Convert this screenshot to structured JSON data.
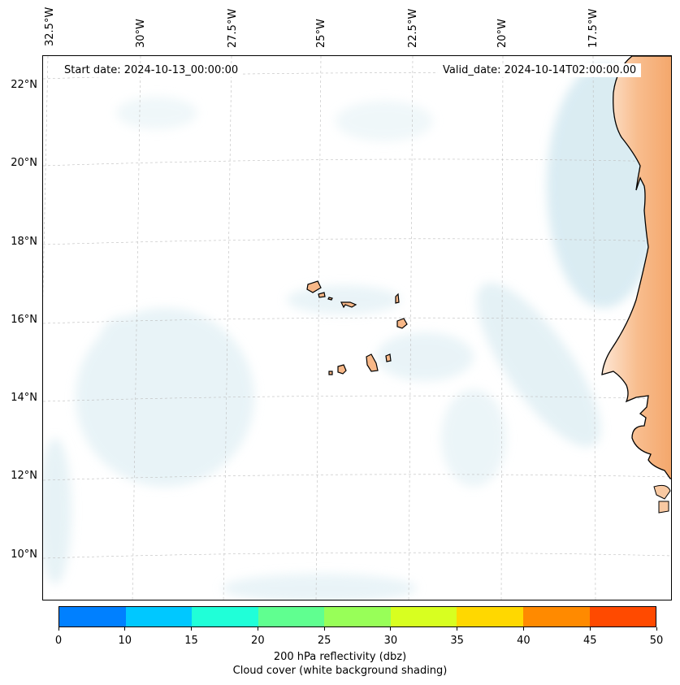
{
  "map": {
    "start_date_label": "Start date: 2024-10-13_00:00:00",
    "valid_date_label": "Valid_date: 2024-10-14T02:00:00.00",
    "longitude_labels": [
      "32.5°W",
      "30°W",
      "27.5°W",
      "25°W",
      "22.5°W",
      "20°W",
      "17.5°W"
    ],
    "latitude_labels": [
      "22°N",
      "20°N",
      "18°N",
      "16°N",
      "14°N",
      "12°N",
      "10°N"
    ],
    "cloud_color": "#cfe6ee",
    "land_color": "#f4a66a",
    "coast_color": "#000000"
  },
  "colorbar": {
    "label_line1": "200 hPa reflectivity (dbz)",
    "label_line2": "Cloud cover (white background shading)",
    "ticks": [
      "0",
      "10",
      "15",
      "20",
      "25",
      "30",
      "35",
      "40",
      "45",
      "50"
    ],
    "colors": [
      "#0080ff",
      "#00c8ff",
      "#20ffd8",
      "#60ff90",
      "#98ff58",
      "#d8ff20",
      "#ffd800",
      "#ff8a00",
      "#ff4a00"
    ]
  }
}
